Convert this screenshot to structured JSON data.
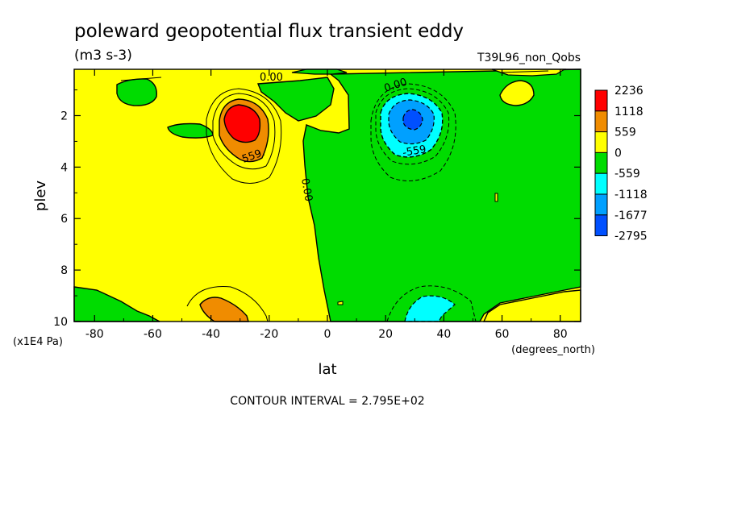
{
  "chart_data": {
    "type": "heatmap",
    "title": "poleward geopotential flux transient eddy",
    "units": "(m3 s-3)",
    "dataset": "T39L96_non_Qobs",
    "xlabel": "lat",
    "x_units": "(degrees_north)",
    "ylabel": "plev",
    "y_units": "(x1E4 Pa)",
    "xlim": [
      -87,
      87
    ],
    "ylim": [
      10,
      0.2
    ],
    "x_ticks": [
      -80,
      -60,
      -40,
      -20,
      0,
      20,
      40,
      60,
      80
    ],
    "x_tick_labels": [
      "-80",
      "-60",
      "-40",
      "-20",
      "0",
      "20",
      "40",
      "60",
      "80"
    ],
    "y_ticks": [
      2,
      4,
      6,
      8,
      10
    ],
    "y_tick_labels": [
      "2",
      "4",
      "6",
      "8",
      "10"
    ],
    "contour_interval_text": "CONTOUR INTERVAL = 2.795E+02",
    "contour_labels": [
      "0.00",
      "0.00",
      "0.00",
      "559.",
      "-559"
    ],
    "colorbar": {
      "levels": [
        "2236",
        "1118",
        "559",
        "0",
        "-559",
        "-1118",
        "-1677",
        "-2795"
      ],
      "colors": [
        "#ff0000",
        "#f08c00",
        "#ffff00",
        "#00dc00",
        "#00ffff",
        "#00a0ff",
        "#0050ff"
      ]
    },
    "features": [
      {
        "kind": "positive maximum",
        "lat": -30,
        "plev": 2.2,
        "value_range": ">2236"
      },
      {
        "kind": "negative minimum",
        "lat": 30,
        "plev": 2.2,
        "value_range": "-1677 to -2795"
      },
      {
        "kind": "positive lobe",
        "lat": -35,
        "plev": 9.6,
        "value_range": "559 to 1118"
      },
      {
        "kind": "negative lobe",
        "lat": 35,
        "plev": 9.6,
        "value_range": "-559 to -1118"
      }
    ],
    "grid": false,
    "legend_placement": "right"
  }
}
